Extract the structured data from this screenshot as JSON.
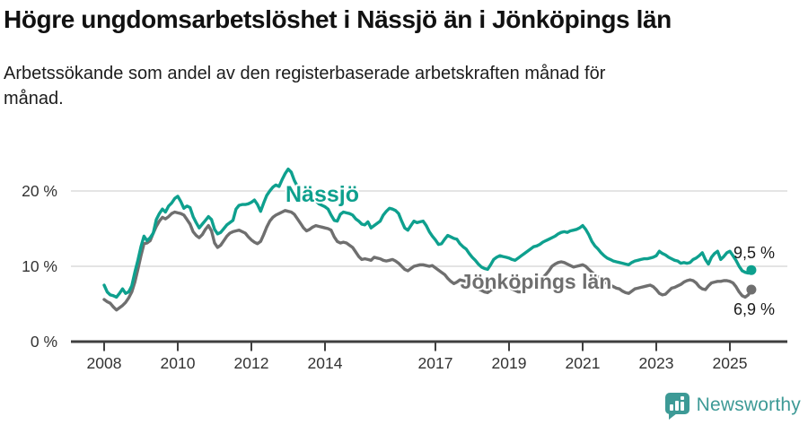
{
  "header": {
    "title": "Högre ungdomsarbetslöshet i Nässjö än i Jönköpings län",
    "subtitle": "Arbetssökande som andel av den registerbaserade arbetskraften månad för\nmånad."
  },
  "footer": {
    "brand": "Newsworthy",
    "brand_color": "#3d9a96"
  },
  "chart_data": {
    "type": "line",
    "title": "Högre ungdomsarbetslöshet i Nässjö än i Jönköpings län",
    "subtitle": "Arbetssökande som andel av den registerbaserade arbetskraften månad för månad.",
    "x_unit": "monthly, Jan 2008 – Aug 2025",
    "start_year": 2008,
    "step_months": 1,
    "ylim": [
      0,
      24
    ],
    "grid": "horizontal",
    "axis_color": "#3f3f3f",
    "grid_color": "#dcdcdc",
    "tick_label_color": "#333333",
    "y_ticks": [
      {
        "label": "0 %",
        "value": 0
      },
      {
        "label": "10 %",
        "value": 10
      },
      {
        "label": "20 %",
        "value": 20
      }
    ],
    "x_ticks": [
      {
        "label": "2008",
        "year": 2008
      },
      {
        "label": "2010",
        "year": 2010
      },
      {
        "label": "2012",
        "year": 2012
      },
      {
        "label": "2014",
        "year": 2014
      },
      {
        "label": "2017",
        "year": 2017
      },
      {
        "label": "2019",
        "year": 2019
      },
      {
        "label": "2021",
        "year": 2021
      },
      {
        "label": "2023",
        "year": 2023
      },
      {
        "label": "2025",
        "year": 2025
      }
    ],
    "series": [
      {
        "id": "nassjo",
        "name": "Nässjö",
        "color": "#0ea08e",
        "end_label": "9,5 %",
        "end_value": 9.5,
        "values": [
          7.5,
          6.6,
          6.2,
          6.1,
          5.9,
          6.4,
          7.0,
          6.4,
          6.6,
          7.4,
          9.2,
          10.8,
          12.6,
          14.0,
          13.4,
          13.8,
          14.4,
          16.2,
          17.0,
          17.6,
          17.2,
          18.0,
          18.4,
          19.0,
          19.3,
          18.6,
          17.7,
          18.0,
          17.8,
          16.6,
          15.8,
          15.1,
          15.6,
          16.1,
          16.6,
          16.2,
          14.9,
          14.3,
          14.5,
          15.0,
          15.5,
          15.8,
          16.1,
          17.6,
          18.1,
          18.2,
          18.2,
          18.3,
          18.5,
          18.8,
          18.2,
          17.3,
          18.4,
          19.4,
          20.0,
          20.5,
          20.8,
          20.6,
          21.5,
          22.3,
          22.9,
          22.5,
          21.4,
          20.6,
          19.9,
          19.4,
          19.8,
          19.4,
          19.1,
          18.7,
          18.3,
          18.1,
          17.9,
          17.6,
          16.8,
          16.1,
          16.0,
          16.9,
          17.2,
          17.1,
          17.0,
          16.8,
          16.3,
          16.0,
          15.6,
          15.5,
          15.9,
          15.1,
          15.4,
          15.7,
          16.0,
          16.8,
          17.3,
          17.7,
          17.6,
          17.4,
          17.0,
          16.0,
          15.1,
          14.8,
          15.4,
          16.0,
          15.8,
          15.9,
          16.0,
          15.4,
          14.6,
          14.0,
          13.5,
          12.9,
          13.0,
          13.6,
          14.1,
          13.9,
          13.7,
          13.6,
          13.0,
          12.6,
          12.3,
          11.7,
          11.2,
          10.8,
          10.3,
          9.9,
          9.7,
          9.6,
          10.2,
          10.9,
          11.2,
          11.4,
          11.3,
          11.2,
          11.1,
          10.9,
          10.8,
          11.1,
          11.4,
          11.7,
          12.0,
          12.3,
          12.6,
          12.7,
          12.9,
          13.2,
          13.4,
          13.6,
          13.8,
          14.0,
          14.3,
          14.5,
          14.6,
          14.5,
          14.7,
          14.8,
          14.9,
          15.1,
          15.4,
          14.9,
          14.2,
          13.3,
          12.7,
          12.3,
          11.8,
          11.4,
          11.1,
          10.9,
          10.7,
          10.6,
          10.5,
          10.4,
          10.3,
          10.2,
          10.5,
          10.7,
          10.8,
          10.9,
          11.0,
          11.0,
          11.1,
          11.2,
          11.4,
          12.0,
          11.7,
          11.5,
          11.2,
          11.0,
          10.8,
          10.7,
          10.4,
          10.5,
          10.4,
          10.5,
          10.9,
          11.1,
          11.4,
          11.8,
          10.9,
          10.3,
          11.2,
          11.7,
          12.0,
          10.9,
          11.3,
          11.8,
          12.0,
          11.4,
          10.8,
          10.0,
          9.4,
          9.2,
          9.1,
          9.5
        ]
      },
      {
        "id": "jonkopings-lan",
        "name": "Jönköpings län",
        "color": "#6f6f6f",
        "end_label": "6,9 %",
        "end_value": 6.9,
        "values": [
          5.6,
          5.3,
          5.1,
          4.6,
          4.2,
          4.5,
          4.8,
          5.2,
          5.8,
          6.6,
          7.9,
          9.6,
          11.4,
          13.0,
          13.1,
          13.4,
          14.4,
          15.3,
          16.0,
          16.5,
          16.3,
          16.6,
          17.0,
          17.2,
          17.1,
          17.0,
          16.8,
          16.2,
          15.6,
          14.6,
          14.1,
          13.8,
          14.2,
          14.9,
          15.4,
          14.7,
          13.1,
          12.5,
          12.8,
          13.4,
          14.0,
          14.4,
          14.6,
          14.7,
          14.8,
          14.6,
          14.4,
          13.9,
          13.5,
          13.2,
          13.0,
          13.3,
          14.2,
          15.2,
          16.0,
          16.5,
          16.8,
          17.0,
          17.2,
          17.4,
          17.3,
          17.2,
          16.9,
          16.3,
          15.7,
          15.1,
          14.7,
          14.9,
          15.2,
          15.4,
          15.3,
          15.2,
          15.1,
          15.0,
          14.8,
          13.9,
          13.3,
          13.1,
          13.2,
          13.1,
          12.8,
          12.5,
          11.9,
          11.3,
          10.9,
          11.0,
          10.9,
          10.8,
          11.2,
          11.1,
          11.0,
          10.8,
          10.7,
          10.8,
          10.9,
          10.7,
          10.4,
          10.0,
          9.6,
          9.4,
          9.7,
          10.0,
          10.1,
          10.2,
          10.2,
          10.1,
          10.0,
          10.1,
          9.8,
          9.5,
          9.2,
          8.9,
          8.4,
          8.0,
          7.7,
          7.9,
          8.2,
          8.1,
          8.0,
          7.9,
          7.7,
          7.3,
          7.0,
          6.8,
          6.6,
          6.5,
          6.8,
          7.1,
          7.3,
          7.4,
          7.4,
          7.3,
          7.2,
          7.0,
          6.8,
          6.6,
          6.6,
          6.9,
          7.1,
          7.3,
          7.5,
          7.8,
          8.1,
          8.5,
          8.9,
          9.4,
          10.0,
          10.3,
          10.5,
          10.6,
          10.5,
          10.3,
          10.1,
          9.9,
          10.0,
          10.1,
          10.2,
          10.0,
          9.6,
          9.2,
          8.9,
          8.6,
          8.3,
          8.0,
          7.7,
          7.5,
          7.3,
          7.1,
          7.0,
          6.7,
          6.5,
          6.4,
          6.7,
          7.0,
          7.1,
          7.2,
          7.3,
          7.4,
          7.5,
          7.3,
          6.9,
          6.4,
          6.2,
          6.3,
          6.7,
          7.1,
          7.2,
          7.4,
          7.6,
          7.9,
          8.1,
          8.2,
          8.1,
          7.8,
          7.3,
          7.0,
          6.9,
          7.4,
          7.8,
          7.9,
          8.0,
          8.0,
          8.1,
          8.1,
          8.0,
          7.8,
          7.3,
          6.6,
          6.1,
          5.9,
          6.2,
          6.9
        ]
      }
    ]
  }
}
